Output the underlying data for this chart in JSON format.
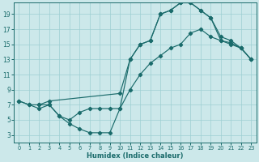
{
  "xlabel": "Humidex (Indice chaleur)",
  "bg_color": "#cce8ea",
  "grid_color": "#9ecfd2",
  "line_color": "#1a6b6b",
  "xlim": [
    -0.5,
    23.5
  ],
  "ylim": [
    2,
    20.5
  ],
  "xticks": [
    0,
    1,
    2,
    3,
    4,
    5,
    6,
    7,
    8,
    9,
    10,
    11,
    12,
    13,
    14,
    15,
    16,
    17,
    18,
    19,
    20,
    21,
    22,
    23
  ],
  "yticks": [
    3,
    5,
    7,
    9,
    11,
    13,
    15,
    17,
    19
  ],
  "curve1_x": [
    0,
    1,
    2,
    3,
    4,
    5,
    6,
    7,
    8,
    9,
    10,
    11,
    12,
    13,
    14,
    15,
    16,
    17,
    18,
    19,
    20,
    21,
    22,
    23
  ],
  "curve1_y": [
    7.5,
    7.0,
    6.5,
    7.0,
    5.5,
    4.5,
    3.8,
    3.3,
    3.3,
    3.3,
    6.5,
    13.0,
    15.0,
    15.5,
    19.0,
    19.5,
    20.5,
    20.5,
    19.5,
    18.5,
    15.5,
    15.0,
    14.5,
    13.0
  ],
  "curve2_x": [
    0,
    1,
    2,
    3,
    4,
    5,
    6,
    7,
    8,
    9,
    10,
    11,
    12,
    13,
    14,
    15,
    16,
    17,
    18,
    19,
    20,
    21,
    22,
    23
  ],
  "curve2_y": [
    7.5,
    7.0,
    7.0,
    7.0,
    5.5,
    5.0,
    6.0,
    6.5,
    6.5,
    6.5,
    6.5,
    9.0,
    11.0,
    12.5,
    13.5,
    14.5,
    15.0,
    16.5,
    17.0,
    16.0,
    15.5,
    15.2,
    14.5,
    13.0
  ],
  "curve3_x": [
    2,
    3,
    10,
    11,
    12,
    13,
    14,
    15,
    16,
    17,
    18,
    19,
    20,
    21,
    22,
    23
  ],
  "curve3_y": [
    7.0,
    7.5,
    8.5,
    13.0,
    15.0,
    15.5,
    19.0,
    19.5,
    20.5,
    20.5,
    19.5,
    18.5,
    16.0,
    15.5,
    14.5,
    13.0
  ]
}
